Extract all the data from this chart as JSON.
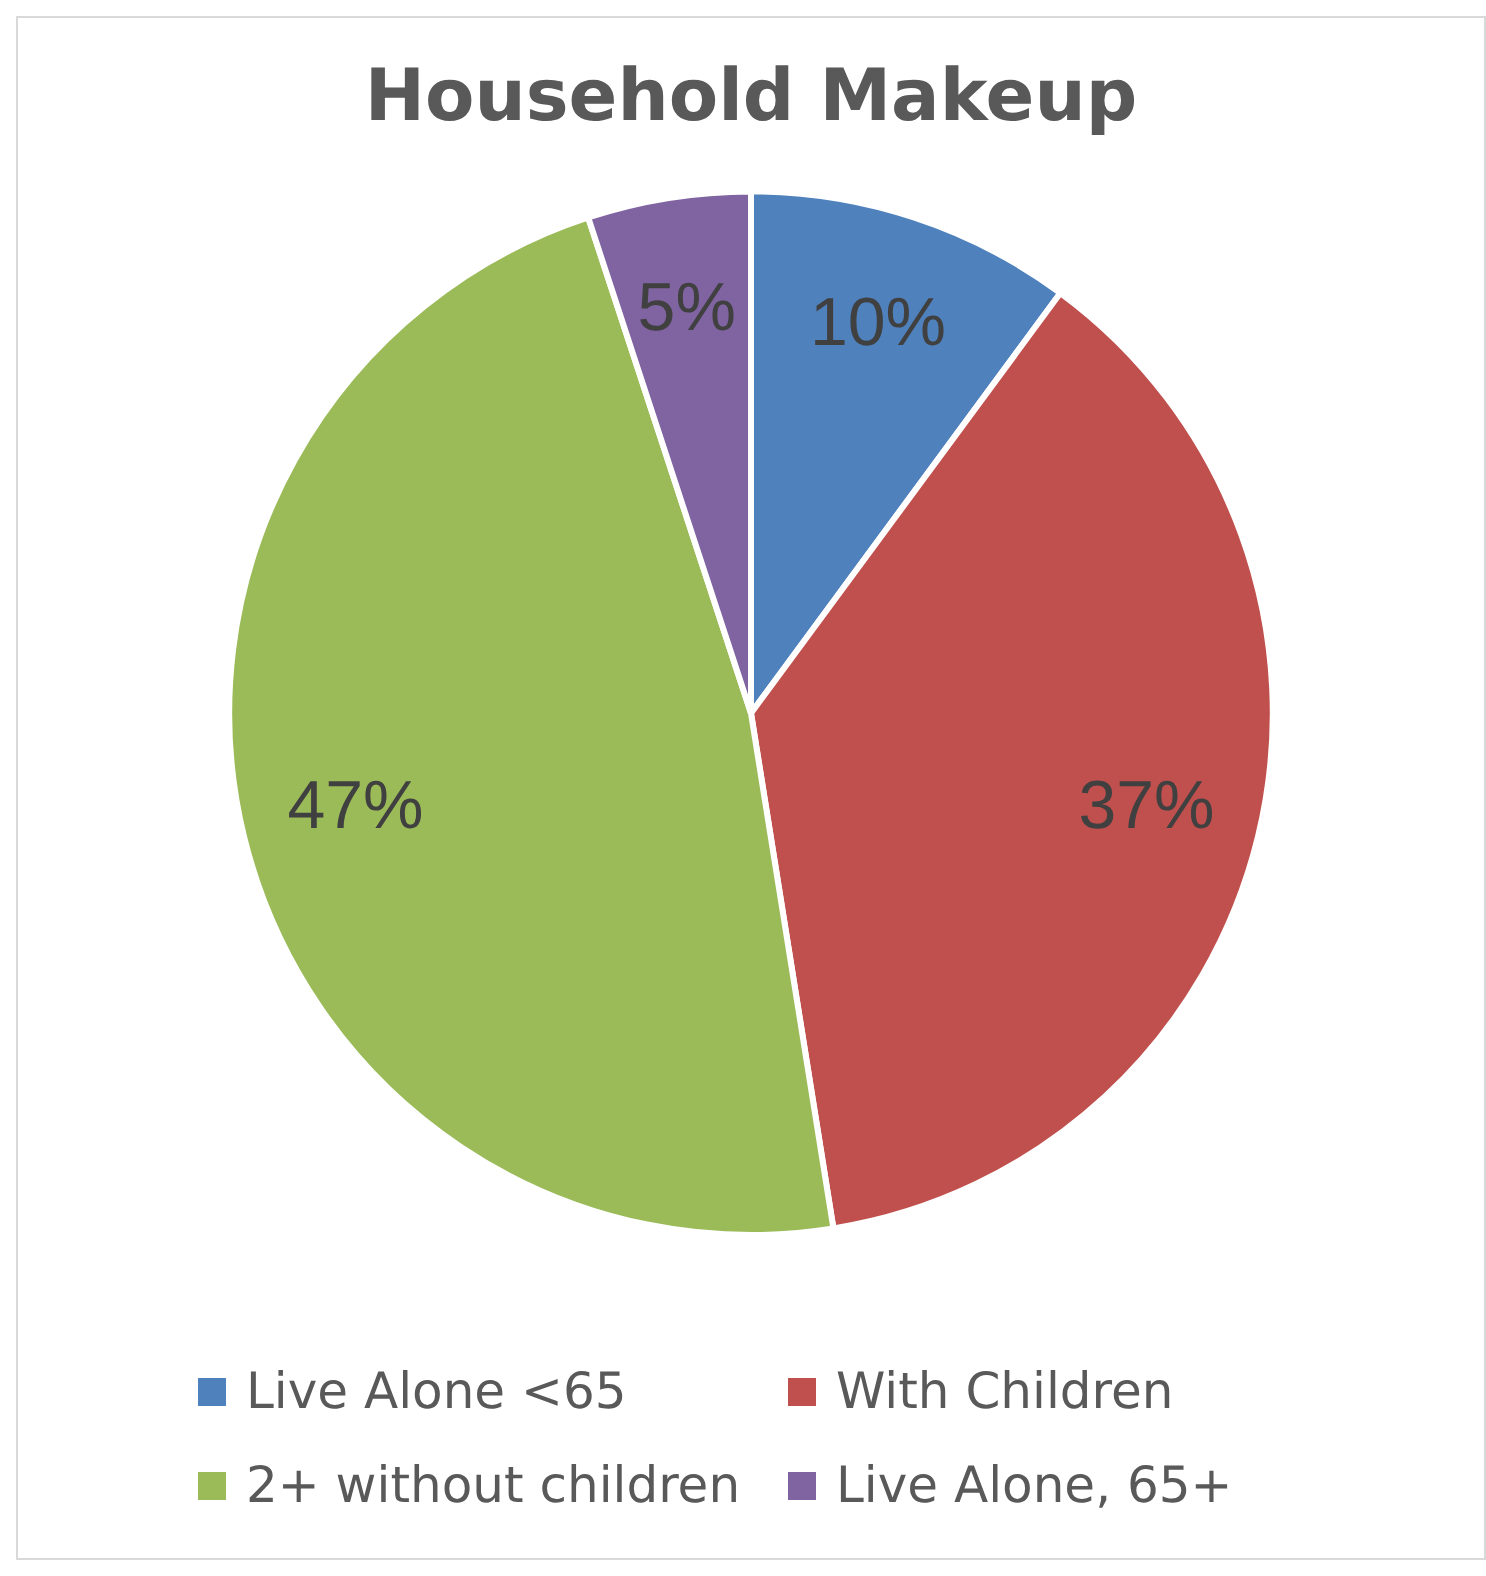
{
  "chart_data": {
    "type": "pie",
    "title": "Household Makeup",
    "categories": [
      "Live Alone <65",
      "With Children",
      "2+ without children",
      "Live Alone, 65+"
    ],
    "values": [
      10,
      37,
      47,
      5
    ],
    "colors": [
      "#4f81bd",
      "#c0504d",
      "#9bbb59",
      "#8064a2"
    ],
    "value_labels": [
      "10%",
      "37%",
      "47%",
      "5%"
    ],
    "legend": "bottom"
  }
}
